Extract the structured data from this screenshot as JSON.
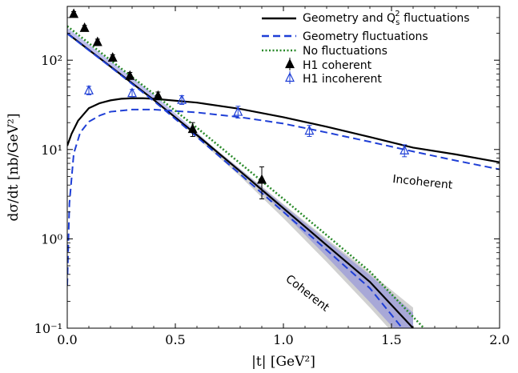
{
  "chart_data": {
    "type": "line",
    "xlabel": "|t| [GeV²]",
    "ylabel": "dσ/dt [nb/GeV²]",
    "xlim": [
      0.0,
      2.0
    ],
    "ylim": [
      0.1,
      400
    ],
    "yscale": "log",
    "x_ticks": [
      "0.0",
      "0.5",
      "1.0",
      "1.5",
      "2.0"
    ],
    "y_ticks": [
      "10⁻¹",
      "10⁰",
      "10¹",
      "10²"
    ],
    "grid": false,
    "legend_position": "top-right",
    "series": [
      {
        "name": "Geometry and Qs² fluctuations",
        "style": "solid",
        "color": "#000000",
        "role": "coherent",
        "x": [
          0.0,
          0.2,
          0.4,
          0.6,
          0.8,
          1.0,
          1.2,
          1.4,
          1.6
        ],
        "y": [
          200,
          85,
          36,
          14.5,
          5.7,
          2.2,
          0.85,
          0.33,
          0.1
        ],
        "band_low": [
          200,
          85,
          36,
          13.5,
          5.0,
          1.7,
          0.55,
          0.17,
          0.05
        ],
        "band_high": [
          200,
          85,
          36,
          15.0,
          6.1,
          2.45,
          1.0,
          0.42,
          0.17
        ]
      },
      {
        "name": "Geometry and Qs² fluctuations",
        "style": "solid",
        "color": "#000000",
        "role": "incoherent",
        "x": [
          0.0,
          0.02,
          0.05,
          0.1,
          0.15,
          0.2,
          0.25,
          0.3,
          0.35,
          0.4,
          0.6,
          0.8,
          1.0,
          1.2,
          1.4,
          1.6,
          1.8,
          2.0
        ],
        "y": [
          11,
          15,
          21,
          29,
          33,
          35.5,
          37,
          37.5,
          37.5,
          37,
          33.5,
          28.5,
          23,
          18,
          13.8,
          10.5,
          8.8,
          7.2
        ]
      },
      {
        "name": "Geometry fluctuations",
        "style": "dashed",
        "color": "#1f3fd6",
        "role": "coherent",
        "x": [
          0.0,
          0.2,
          0.4,
          0.6,
          0.8,
          1.0,
          1.2,
          1.4,
          1.55
        ],
        "y": [
          198,
          84,
          35,
          13.8,
          5.3,
          2.0,
          0.75,
          0.28,
          0.1
        ]
      },
      {
        "name": "Geometry fluctuations",
        "style": "dashed",
        "color": "#1f3fd6",
        "role": "incoherent",
        "x": [
          0.0,
          0.01,
          0.03,
          0.06,
          0.1,
          0.15,
          0.2,
          0.3,
          0.4,
          0.6,
          0.8,
          1.0,
          1.2,
          1.4,
          1.6,
          1.8,
          2.0
        ],
        "y": [
          0.3,
          2.5,
          9,
          15.5,
          20.5,
          24,
          26.5,
          28,
          28,
          26,
          23,
          19.5,
          15.5,
          12.2,
          9.5,
          7.5,
          6.0
        ]
      },
      {
        "name": "No fluctuations",
        "style": "dotted",
        "color": "#2a8a2a",
        "role": "coherent",
        "x": [
          0.0,
          0.2,
          0.4,
          0.6,
          0.8,
          1.0,
          1.2,
          1.4,
          1.65
        ],
        "y": [
          240,
          100,
          42,
          17.5,
          7.0,
          2.8,
          1.1,
          0.43,
          0.1
        ]
      }
    ],
    "points": [
      {
        "name": "H1 coherent",
        "marker": "filled-triangle",
        "color": "#000000",
        "x": [
          0.03,
          0.08,
          0.14,
          0.21,
          0.29,
          0.42,
          0.58,
          0.9
        ],
        "y": [
          330,
          230,
          160,
          107,
          67,
          40,
          17,
          4.6
        ],
        "err": [
          20,
          15,
          12,
          8,
          6,
          4,
          3,
          1.8
        ]
      },
      {
        "name": "H1 incoherent",
        "marker": "open-triangle",
        "color": "#1f3fd6",
        "x": [
          0.1,
          0.3,
          0.53,
          0.79,
          1.12,
          1.56
        ],
        "y": [
          46,
          43,
          36,
          26.5,
          16.3,
          9.8
        ],
        "err": [
          5,
          4,
          4,
          4,
          2.3,
          1.5
        ]
      }
    ],
    "annotations": [
      "Incoherent",
      "Coherent"
    ]
  },
  "legend": {
    "entries": [
      {
        "label_main": "Geometry and Q",
        "label_sub": "s",
        "label_sup": "2",
        "label_rest": " fluctuations",
        "kind": "line",
        "style": "solid",
        "color": "#000000"
      },
      {
        "label_main": "Geometry fluctuations",
        "kind": "line",
        "style": "dashed",
        "color": "#1f3fd6"
      },
      {
        "label_main": "No fluctuations",
        "kind": "line",
        "style": "dotted",
        "color": "#2a8a2a"
      },
      {
        "label_main": "H1 coherent",
        "kind": "marker",
        "marker": "filled-triangle",
        "color": "#000000"
      },
      {
        "label_main": "H1 incoherent",
        "kind": "marker",
        "marker": "open-triangle",
        "color": "#1f3fd6"
      }
    ]
  },
  "colors": {
    "band_gray": "#9a9a9a",
    "band_blue": "#7f7fdd"
  }
}
